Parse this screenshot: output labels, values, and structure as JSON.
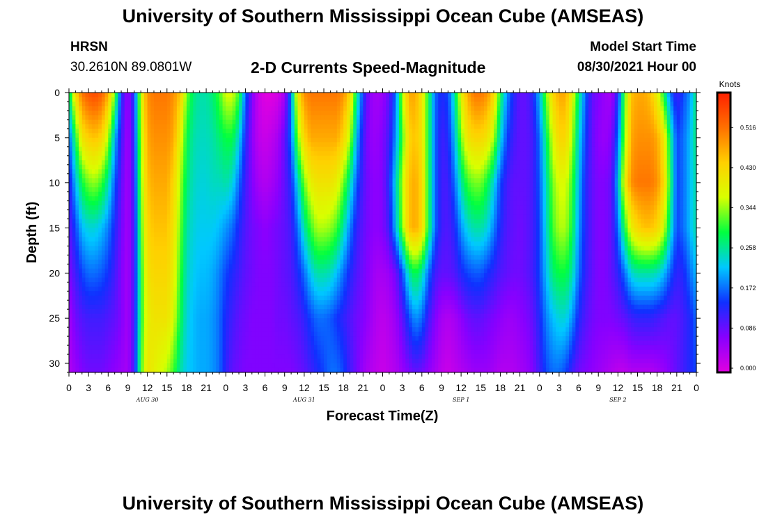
{
  "header": {
    "title": "University of Southern Mississippi Ocean Cube (AMSEAS)",
    "station": "HRSN",
    "coords": "30.2610N  89.0801W",
    "subtitle": "2-D Currents Speed-Magnitude",
    "start_label": "Model Start Time",
    "start_value": "08/30/2021 Hour 00"
  },
  "footer": {
    "title": "University of Southern Mississippi Ocean Cube (AMSEAS)"
  },
  "chart_data": {
    "type": "heatmap",
    "title": "2-D Currents Speed-Magnitude",
    "xlabel": "Forecast Time(Z)",
    "ylabel": "Depth (ft)",
    "x_unit": "forecast hour from 08/30/2021 00Z",
    "xlim": [
      0,
      96
    ],
    "ylim": [
      0,
      31
    ],
    "y_inverted": true,
    "x_tick_labels": [
      "0",
      "3",
      "6",
      "9",
      "12",
      "15",
      "18",
      "21",
      "0",
      "3",
      "6",
      "9",
      "12",
      "15",
      "18",
      "21",
      "0",
      "3",
      "6",
      "9",
      "12",
      "15",
      "18",
      "21",
      "0",
      "3",
      "6",
      "9",
      "12",
      "15",
      "18",
      "21",
      "0"
    ],
    "date_labels": [
      {
        "hour": 12,
        "label": "AUG 30"
      },
      {
        "hour": 36,
        "label": "AUG 31"
      },
      {
        "hour": 60,
        "label": "SEP 1"
      },
      {
        "hour": 84,
        "label": "SEP 2"
      }
    ],
    "y_ticks": [
      0,
      5,
      10,
      15,
      20,
      25,
      30
    ],
    "colorbar": {
      "unit": "Knots",
      "min": 0.0,
      "max": 0.6,
      "tick_labels": [
        "0.000",
        "0.086",
        "0.172",
        "0.258",
        "0.344",
        "0.430",
        "0.516"
      ],
      "colors": [
        "#e000e0",
        "#8800ff",
        "#1030ff",
        "#00c8ff",
        "#00ff40",
        "#d8ff00",
        "#ffd000",
        "#ff7000",
        "#ff2000"
      ]
    },
    "depths": [
      0,
      5,
      10,
      15,
      20,
      25,
      31
    ],
    "hours": [
      0,
      1,
      2,
      3,
      4,
      5,
      6,
      7,
      8,
      9,
      10,
      11,
      12,
      13,
      14,
      15,
      16,
      17,
      18,
      19,
      20,
      21,
      22,
      23,
      24,
      25,
      26,
      27,
      28,
      29,
      30,
      31,
      32,
      33,
      34,
      35,
      36,
      37,
      38,
      39,
      40,
      41,
      42,
      43,
      44,
      45,
      46,
      47,
      48,
      49,
      50,
      51,
      52,
      53,
      54,
      55,
      56,
      57,
      58,
      59,
      60,
      61,
      62,
      63,
      64,
      65,
      66,
      67,
      68,
      69,
      70,
      71,
      72,
      73,
      74,
      75,
      76,
      77,
      78,
      79,
      80,
      81,
      82,
      83,
      84,
      85,
      86,
      87,
      88,
      89,
      90,
      91,
      92,
      93,
      94,
      95,
      96
    ],
    "speed_knots": [
      [
        0.26,
        0.44,
        0.52,
        0.55,
        0.56,
        0.54,
        0.48,
        0.34,
        0.14,
        0.06,
        0.15,
        0.38,
        0.5,
        0.52,
        0.52,
        0.52,
        0.5,
        0.46,
        0.34,
        0.28,
        0.26,
        0.26,
        0.28,
        0.32,
        0.38,
        0.38,
        0.32,
        0.18,
        0.08,
        0.02,
        0.0,
        0.0,
        0.01,
        0.05,
        0.2,
        0.42,
        0.5,
        0.52,
        0.52,
        0.52,
        0.52,
        0.52,
        0.5,
        0.44,
        0.28,
        0.15,
        0.07,
        0.05,
        0.06,
        0.1,
        0.18,
        0.36,
        0.48,
        0.48,
        0.42,
        0.3,
        0.18,
        0.14,
        0.16,
        0.26,
        0.4,
        0.48,
        0.52,
        0.52,
        0.5,
        0.44,
        0.3,
        0.2,
        0.14,
        0.1,
        0.1,
        0.14,
        0.22,
        0.34,
        0.44,
        0.48,
        0.48,
        0.4,
        0.28,
        0.18,
        0.1,
        0.08,
        0.06,
        0.05,
        0.14,
        0.32,
        0.46,
        0.48,
        0.48,
        0.46,
        0.4,
        0.3,
        0.18,
        0.12,
        0.16,
        0.2,
        0.28
      ],
      [
        0.17,
        0.3,
        0.42,
        0.45,
        0.46,
        0.44,
        0.36,
        0.22,
        0.12,
        0.05,
        0.14,
        0.36,
        0.48,
        0.5,
        0.5,
        0.5,
        0.48,
        0.4,
        0.3,
        0.26,
        0.25,
        0.25,
        0.26,
        0.28,
        0.3,
        0.3,
        0.24,
        0.14,
        0.07,
        0.03,
        0.02,
        0.03,
        0.05,
        0.1,
        0.18,
        0.34,
        0.44,
        0.48,
        0.48,
        0.48,
        0.48,
        0.48,
        0.44,
        0.36,
        0.22,
        0.12,
        0.07,
        0.06,
        0.08,
        0.12,
        0.2,
        0.32,
        0.44,
        0.46,
        0.42,
        0.3,
        0.18,
        0.12,
        0.14,
        0.22,
        0.34,
        0.42,
        0.44,
        0.44,
        0.42,
        0.36,
        0.24,
        0.16,
        0.12,
        0.1,
        0.1,
        0.12,
        0.18,
        0.28,
        0.38,
        0.44,
        0.44,
        0.36,
        0.24,
        0.16,
        0.1,
        0.07,
        0.06,
        0.08,
        0.18,
        0.34,
        0.48,
        0.5,
        0.5,
        0.5,
        0.48,
        0.42,
        0.28,
        0.16,
        0.18,
        0.22,
        0.28
      ],
      [
        0.12,
        0.22,
        0.3,
        0.34,
        0.35,
        0.32,
        0.26,
        0.17,
        0.1,
        0.05,
        0.13,
        0.34,
        0.46,
        0.48,
        0.48,
        0.48,
        0.44,
        0.36,
        0.28,
        0.25,
        0.24,
        0.24,
        0.25,
        0.25,
        0.26,
        0.24,
        0.18,
        0.12,
        0.08,
        0.05,
        0.04,
        0.05,
        0.07,
        0.1,
        0.14,
        0.24,
        0.34,
        0.4,
        0.42,
        0.42,
        0.42,
        0.4,
        0.34,
        0.26,
        0.17,
        0.11,
        0.08,
        0.07,
        0.08,
        0.14,
        0.24,
        0.36,
        0.46,
        0.48,
        0.44,
        0.3,
        0.18,
        0.12,
        0.12,
        0.18,
        0.26,
        0.32,
        0.34,
        0.34,
        0.3,
        0.24,
        0.16,
        0.12,
        0.1,
        0.1,
        0.1,
        0.12,
        0.17,
        0.25,
        0.34,
        0.38,
        0.38,
        0.32,
        0.22,
        0.14,
        0.1,
        0.08,
        0.08,
        0.1,
        0.22,
        0.4,
        0.5,
        0.52,
        0.52,
        0.52,
        0.5,
        0.44,
        0.3,
        0.16,
        0.18,
        0.22,
        0.26
      ],
      [
        0.1,
        0.16,
        0.22,
        0.24,
        0.24,
        0.22,
        0.19,
        0.14,
        0.09,
        0.05,
        0.12,
        0.32,
        0.44,
        0.46,
        0.46,
        0.46,
        0.42,
        0.34,
        0.26,
        0.24,
        0.23,
        0.23,
        0.23,
        0.22,
        0.2,
        0.18,
        0.14,
        0.11,
        0.09,
        0.08,
        0.07,
        0.08,
        0.09,
        0.1,
        0.12,
        0.18,
        0.26,
        0.32,
        0.36,
        0.36,
        0.35,
        0.32,
        0.26,
        0.19,
        0.13,
        0.1,
        0.08,
        0.07,
        0.08,
        0.12,
        0.22,
        0.34,
        0.46,
        0.48,
        0.44,
        0.3,
        0.18,
        0.12,
        0.11,
        0.14,
        0.2,
        0.24,
        0.26,
        0.26,
        0.24,
        0.19,
        0.14,
        0.11,
        0.1,
        0.09,
        0.1,
        0.12,
        0.16,
        0.24,
        0.32,
        0.36,
        0.36,
        0.3,
        0.2,
        0.14,
        0.1,
        0.08,
        0.08,
        0.1,
        0.18,
        0.3,
        0.4,
        0.44,
        0.46,
        0.46,
        0.44,
        0.38,
        0.26,
        0.16,
        0.18,
        0.22,
        0.26
      ],
      [
        0.08,
        0.12,
        0.16,
        0.18,
        0.18,
        0.17,
        0.15,
        0.12,
        0.08,
        0.05,
        0.12,
        0.3,
        0.42,
        0.44,
        0.44,
        0.44,
        0.4,
        0.32,
        0.25,
        0.23,
        0.22,
        0.22,
        0.21,
        0.19,
        0.16,
        0.14,
        0.12,
        0.1,
        0.09,
        0.08,
        0.08,
        0.08,
        0.09,
        0.1,
        0.11,
        0.14,
        0.18,
        0.23,
        0.26,
        0.26,
        0.25,
        0.22,
        0.18,
        0.14,
        0.11,
        0.09,
        0.07,
        0.05,
        0.05,
        0.06,
        0.09,
        0.16,
        0.26,
        0.3,
        0.26,
        0.18,
        0.12,
        0.1,
        0.1,
        0.11,
        0.14,
        0.16,
        0.17,
        0.17,
        0.15,
        0.13,
        0.11,
        0.1,
        0.09,
        0.09,
        0.1,
        0.12,
        0.16,
        0.22,
        0.28,
        0.3,
        0.3,
        0.26,
        0.18,
        0.13,
        0.1,
        0.08,
        0.08,
        0.1,
        0.13,
        0.18,
        0.24,
        0.26,
        0.26,
        0.26,
        0.25,
        0.22,
        0.17,
        0.13,
        0.14,
        0.18,
        0.22
      ],
      [
        0.05,
        0.09,
        0.11,
        0.12,
        0.12,
        0.12,
        0.11,
        0.1,
        0.08,
        0.05,
        0.12,
        0.3,
        0.4,
        0.42,
        0.42,
        0.42,
        0.38,
        0.3,
        0.24,
        0.22,
        0.21,
        0.21,
        0.2,
        0.18,
        0.14,
        0.12,
        0.1,
        0.09,
        0.08,
        0.08,
        0.08,
        0.08,
        0.09,
        0.09,
        0.1,
        0.11,
        0.13,
        0.16,
        0.18,
        0.18,
        0.17,
        0.15,
        0.13,
        0.11,
        0.09,
        0.08,
        0.06,
        0.04,
        0.03,
        0.04,
        0.06,
        0.1,
        0.16,
        0.2,
        0.18,
        0.12,
        0.08,
        0.05,
        0.04,
        0.05,
        0.07,
        0.09,
        0.1,
        0.1,
        0.09,
        0.08,
        0.07,
        0.06,
        0.06,
        0.07,
        0.08,
        0.1,
        0.14,
        0.19,
        0.22,
        0.24,
        0.24,
        0.2,
        0.14,
        0.11,
        0.09,
        0.08,
        0.08,
        0.08,
        0.09,
        0.1,
        0.12,
        0.13,
        0.13,
        0.13,
        0.12,
        0.11,
        0.1,
        0.1,
        0.12,
        0.14,
        0.18
      ],
      [
        0.04,
        0.06,
        0.08,
        0.09,
        0.09,
        0.09,
        0.08,
        0.07,
        0.06,
        0.05,
        0.12,
        0.32,
        0.42,
        0.4,
        0.38,
        0.36,
        0.32,
        0.26,
        0.23,
        0.22,
        0.21,
        0.21,
        0.2,
        0.18,
        0.13,
        0.1,
        0.09,
        0.08,
        0.08,
        0.08,
        0.08,
        0.08,
        0.08,
        0.08,
        0.08,
        0.09,
        0.1,
        0.12,
        0.14,
        0.16,
        0.18,
        0.18,
        0.16,
        0.12,
        0.09,
        0.06,
        0.04,
        0.03,
        0.02,
        0.03,
        0.04,
        0.06,
        0.08,
        0.1,
        0.09,
        0.07,
        0.05,
        0.03,
        0.02,
        0.03,
        0.04,
        0.05,
        0.06,
        0.06,
        0.06,
        0.05,
        0.04,
        0.04,
        0.04,
        0.05,
        0.06,
        0.08,
        0.12,
        0.16,
        0.18,
        0.18,
        0.16,
        0.12,
        0.09,
        0.08,
        0.07,
        0.06,
        0.05,
        0.04,
        0.03,
        0.03,
        0.04,
        0.04,
        0.04,
        0.04,
        0.05,
        0.06,
        0.08,
        0.1,
        0.12,
        0.14,
        0.16
      ]
    ]
  }
}
